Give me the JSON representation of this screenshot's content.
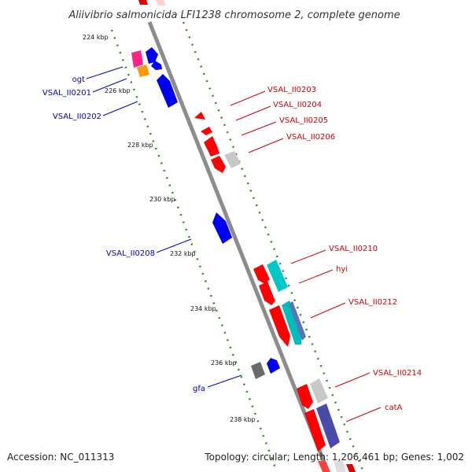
{
  "title": "Aliivibrio salmonicida LFI1238 chromosome 2, complete genome",
  "accession_text": "Accession: NC_011313",
  "summary_text": "Topology: circular; Length: 1,206,461 bp; Genes: 1,002",
  "colors": {
    "backbone": "#8c8c8c",
    "dotted_track": "#2e8b1e",
    "forward_label": "#d40000",
    "reverse_label": "#0000c8",
    "forward_gene": "#ff0000",
    "reverse_gene": "#0000ff"
  },
  "ticks": [
    "224 kbp",
    "226 kbp",
    "228 kbp",
    "230 kbp",
    "232 kbp",
    "234 kbp",
    "236 kbp",
    "238 kbp"
  ],
  "labels": {
    "forward": [
      "VSAL_II0203",
      "VSAL_II0204",
      "VSAL_II0205",
      "VSAL_II0206",
      "VSAL_II0210",
      "hyi",
      "VSAL_II0212",
      "VSAL_II0214",
      "catA"
    ],
    "reverse": [
      "ogt",
      "VSAL_II0201",
      "VSAL_II0202",
      "VSAL_II0208",
      "gfa"
    ]
  }
}
